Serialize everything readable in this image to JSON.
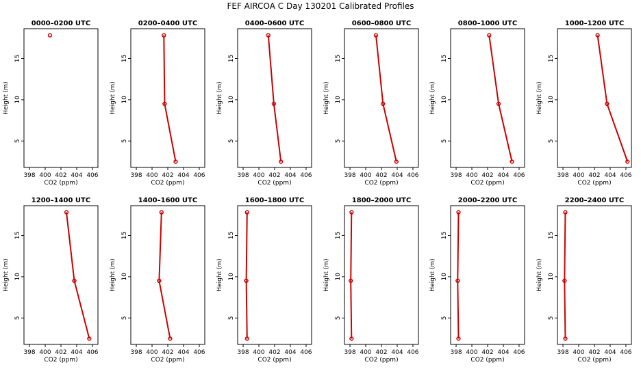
{
  "title": "FEF AIRCOA C  Day 130201  Calibrated Profiles",
  "chart_data": {
    "type": "line",
    "layout": "2x6 small multiples",
    "series_color": "#cc0000",
    "xlabel": "CO2 (ppm)",
    "ylabel": "Height (m)",
    "xlim": [
      397.3,
      406.7
    ],
    "ylim": [
      1.8,
      18.6
    ],
    "x_ticks": [
      398,
      400,
      402,
      404,
      406
    ],
    "y_ticks": [
      5,
      10,
      15
    ],
    "heights": [
      17.8,
      9.5,
      2.5
    ],
    "panels": [
      {
        "title": "0000–0200 UTC",
        "co2": [
          400.6,
          null,
          null
        ]
      },
      {
        "title": "0200–0400 UTC",
        "co2": [
          401.5,
          401.6,
          403.0
        ]
      },
      {
        "title": "0400–0600 UTC",
        "co2": [
          401.2,
          401.9,
          402.8
        ]
      },
      {
        "title": "0600–0800 UTC",
        "co2": [
          401.3,
          402.2,
          403.9
        ]
      },
      {
        "title": "0800–1000 UTC",
        "co2": [
          402.2,
          403.4,
          405.1
        ]
      },
      {
        "title": "1000–1200 UTC",
        "co2": [
          402.4,
          403.6,
          406.2
        ]
      },
      {
        "title": "1200–1400 UTC",
        "co2": [
          402.7,
          403.7,
          405.6
        ]
      },
      {
        "title": "1400–1600 UTC",
        "co2": [
          401.2,
          400.9,
          402.3
        ]
      },
      {
        "title": "1600–1800 UTC",
        "co2": [
          398.5,
          398.4,
          398.5
        ]
      },
      {
        "title": "1800–2000 UTC",
        "co2": [
          398.2,
          398.1,
          398.2
        ]
      },
      {
        "title": "2000–2200 UTC",
        "co2": [
          398.3,
          398.2,
          398.3
        ]
      },
      {
        "title": "2200–2400 UTC",
        "co2": [
          398.3,
          398.2,
          398.3
        ]
      }
    ]
  }
}
